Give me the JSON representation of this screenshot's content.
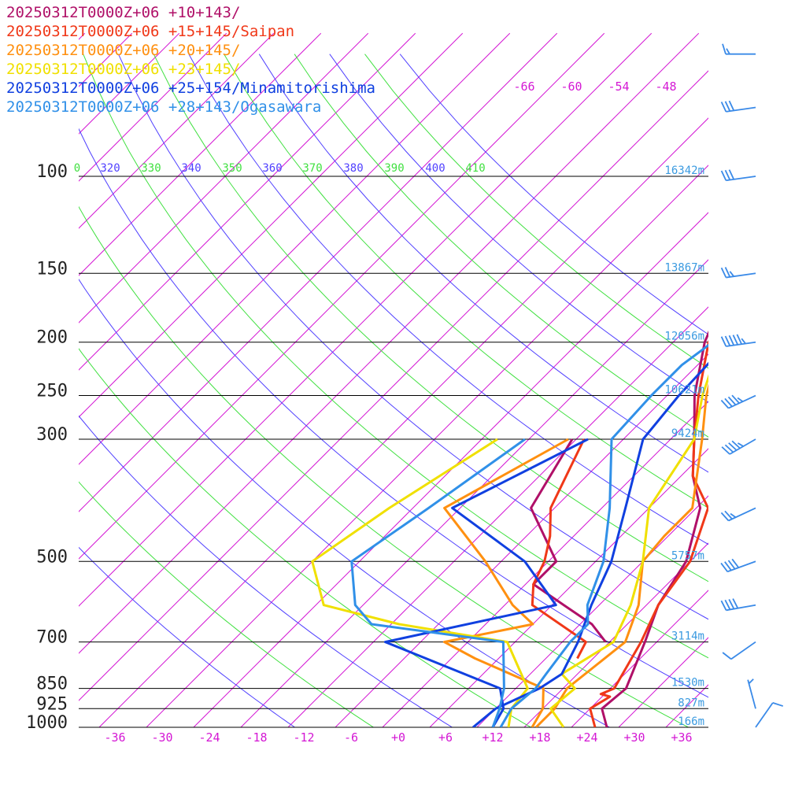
{
  "chart_data": {
    "type": "line",
    "title": "",
    "xlabel": "",
    "ylabel": "",
    "pressure_scale": "log",
    "x_range": [
      -40,
      40
    ],
    "y_range": [
      1000,
      100
    ],
    "x_ticks": [
      "-36",
      "-30",
      "-24",
      "-18",
      "-12",
      "-6",
      "+0",
      "+6",
      "+12",
      "+18",
      "+24",
      "+30",
      "+36"
    ],
    "x_tick_values": [
      -36,
      -30,
      -24,
      -18,
      -12,
      -6,
      0,
      6,
      12,
      18,
      24,
      30,
      36
    ],
    "pressure_levels": [
      {
        "p": 100,
        "label": "100",
        "height": "16342m"
      },
      {
        "p": 150,
        "label": "150",
        "height": "13867m"
      },
      {
        "p": 200,
        "label": "200",
        "height": "12056m"
      },
      {
        "p": 250,
        "label": "250",
        "height": "10621m"
      },
      {
        "p": 300,
        "label": "300",
        "height": "9424m"
      },
      {
        "p": 500,
        "label": "500",
        "height": "5757m"
      },
      {
        "p": 700,
        "label": "700",
        "height": "3114m"
      },
      {
        "p": 850,
        "label": "850",
        "height": "1530m"
      },
      {
        "p": 925,
        "label": "925",
        "height": "827m"
      },
      {
        "p": 1000,
        "label": "1000",
        "height": "166m"
      }
    ],
    "theta_labels": [
      "0",
      "320",
      "330",
      "340",
      "350",
      "360",
      "370",
      "380",
      "390",
      "400",
      "410"
    ],
    "upper_temp_labels": [
      "-66",
      "-60",
      "-54",
      "-48"
    ],
    "grid": true,
    "legend_position": "top-left",
    "colors": {
      "isotherm": "#d418d4",
      "theta_blue": "#5040ff",
      "theta_green": "#40e040",
      "pressure_line": "#000000",
      "height_label": "#3a9ae0",
      "wind_barb": "#3a8ae8"
    },
    "series": [
      {
        "name": "20250312T0000Z+06 +10+143/",
        "color": "#b01068",
        "temperature": [
          [
            1000,
            26.5
          ],
          [
            925,
            23.5
          ],
          [
            850,
            24
          ],
          [
            700,
            20.5
          ],
          [
            600,
            17.5
          ],
          [
            500,
            15.5
          ],
          [
            400,
            10.5
          ],
          [
            350,
            5.5
          ],
          [
            300,
            1
          ],
          [
            250,
            -4.5
          ],
          [
            200,
            -10
          ],
          [
            150,
            -15
          ],
          [
            130,
            -18
          ],
          [
            118,
            -20
          ],
          [
            105,
            -14
          ],
          [
            88,
            -12
          ],
          [
            80,
            -5
          ],
          [
            70,
            13
          ],
          [
            65,
            24
          ]
        ],
        "dewpoint": [
          [
            700,
            15.5
          ],
          [
            650,
            11.5
          ],
          [
            600,
            5.5
          ],
          [
            550,
            -1
          ],
          [
            500,
            -1
          ],
          [
            400,
            -11
          ],
          [
            300,
            -14.5
          ]
        ]
      },
      {
        "name": "20250312T0000Z+06 +15+145/Saipan",
        "color": "#f03818",
        "temperature": [
          [
            1000,
            25
          ],
          [
            925,
            22
          ],
          [
            880,
            23
          ],
          [
            870,
            21.5
          ],
          [
            850,
            22.5
          ],
          [
            700,
            20
          ],
          [
            600,
            17.5
          ],
          [
            500,
            16
          ],
          [
            400,
            11.5
          ],
          [
            350,
            5.5
          ],
          [
            300,
            1
          ],
          [
            250,
            -4
          ],
          [
            200,
            -9.5
          ],
          [
            150,
            -14
          ],
          [
            118,
            -20
          ],
          [
            100,
            -17
          ],
          [
            85,
            -10
          ],
          [
            75,
            0
          ],
          [
            65,
            24
          ]
        ],
        "dewpoint": [
          [
            750,
            14
          ],
          [
            700,
            13
          ],
          [
            600,
            1.5
          ],
          [
            550,
            -1
          ],
          [
            500,
            -2.5
          ],
          [
            450,
            -5
          ],
          [
            400,
            -8.5
          ],
          [
            300,
            -13
          ]
        ]
      },
      {
        "name": "20250312T0000Z+06 +20+145/",
        "color": "#ff9010",
        "temperature": [
          [
            1000,
            17.5
          ],
          [
            925,
            17.5
          ],
          [
            850,
            16.5
          ],
          [
            700,
            18
          ],
          [
            600,
            15
          ],
          [
            500,
            10
          ],
          [
            450,
            9.5
          ],
          [
            400,
            9.5
          ],
          [
            300,
            2
          ],
          [
            250,
            -3
          ],
          [
            200,
            -8
          ],
          [
            150,
            -13.5
          ],
          [
            118,
            -14.5
          ],
          [
            100,
            -11
          ],
          [
            88,
            -5
          ],
          [
            75,
            3.5
          ],
          [
            65,
            23
          ]
        ],
        "dewpoint": [
          [
            1000,
            17
          ],
          [
            925,
            16
          ],
          [
            850,
            13.5
          ],
          [
            750,
            1
          ],
          [
            700,
            -5
          ],
          [
            650,
            4
          ],
          [
            600,
            -1
          ],
          [
            500,
            -10
          ],
          [
            400,
            -22
          ],
          [
            300,
            -15
          ]
        ]
      },
      {
        "name": "20250312T0000Z+06 +23+145/",
        "color": "#f0e000",
        "temperature": [
          [
            1000,
            21
          ],
          [
            925,
            17
          ],
          [
            850,
            17.5
          ],
          [
            800,
            14
          ],
          [
            700,
            16.5
          ],
          [
            600,
            14
          ],
          [
            500,
            10
          ],
          [
            400,
            4
          ],
          [
            300,
            1
          ],
          [
            250,
            -3.5
          ],
          [
            200,
            -8
          ],
          [
            150,
            -11
          ],
          [
            130,
            -12
          ],
          [
            105,
            -8.5
          ],
          [
            90,
            -2.5
          ],
          [
            80,
            5
          ],
          [
            65,
            25.5
          ]
        ],
        "dewpoint": [
          [
            1000,
            14
          ],
          [
            925,
            12
          ],
          [
            850,
            11.5
          ],
          [
            700,
            3
          ],
          [
            650,
            -13
          ],
          [
            600,
            -25
          ],
          [
            500,
            -32
          ],
          [
            400,
            -29
          ],
          [
            300,
            -24
          ]
        ]
      },
      {
        "name": "20250312T0000Z+06 +25+154/Minamitorishima",
        "color": "#1040e0",
        "temperature": [
          [
            1000,
            9.5
          ],
          [
            925,
            10
          ],
          [
            850,
            13
          ],
          [
            800,
            14
          ],
          [
            700,
            12
          ],
          [
            600,
            9
          ],
          [
            500,
            6
          ],
          [
            400,
            1
          ],
          [
            300,
            -5.5
          ],
          [
            250,
            -6.5
          ],
          [
            200,
            -7
          ],
          [
            150,
            -8.5
          ],
          [
            140,
            -10.5
          ],
          [
            120,
            -6.5
          ],
          [
            100,
            -1.5
          ],
          [
            85,
            3.5
          ],
          [
            65,
            28
          ]
        ],
        "dewpoint": [
          [
            1000,
            12
          ],
          [
            925,
            11
          ],
          [
            850,
            8
          ],
          [
            700,
            -12.5
          ],
          [
            600,
            4.5
          ],
          [
            500,
            -5
          ],
          [
            400,
            -21
          ],
          [
            300,
            -12.5
          ]
        ]
      },
      {
        "name": "20250312T0000Z+06 +28+143/Ogasawara",
        "color": "#3090e8",
        "temperature": [
          [
            1000,
            13
          ],
          [
            925,
            12
          ],
          [
            850,
            12.5
          ],
          [
            800,
            12
          ],
          [
            700,
            11
          ],
          [
            650,
            11
          ],
          [
            600,
            8.5
          ],
          [
            500,
            5
          ],
          [
            400,
            -1
          ],
          [
            300,
            -9.5
          ],
          [
            250,
            -10
          ],
          [
            220,
            -10
          ],
          [
            200,
            -9
          ],
          [
            175,
            -7
          ],
          [
            150,
            -7.5
          ],
          [
            120,
            -6
          ],
          [
            100,
            -2
          ],
          [
            90,
            3.5
          ],
          [
            80,
            9
          ],
          [
            70,
            27
          ],
          [
            65,
            28
          ]
        ],
        "dewpoint": [
          [
            1000,
            12
          ],
          [
            925,
            10.5
          ],
          [
            850,
            8.5
          ],
          [
            700,
            2.5
          ],
          [
            650,
            -16.5
          ],
          [
            600,
            -21
          ],
          [
            500,
            -27
          ],
          [
            400,
            -24
          ],
          [
            300,
            -20.5
          ]
        ]
      }
    ],
    "wind_barbs": [
      {
        "p": 1000,
        "speed_kt": 10,
        "from_deg": 35
      },
      {
        "p": 925,
        "speed_kt": 5,
        "from_deg": 345
      },
      {
        "p": 700,
        "speed_kt": 10,
        "from_deg": 235
      },
      {
        "p": 600,
        "speed_kt": 40,
        "from_deg": 260
      },
      {
        "p": 500,
        "speed_kt": 40,
        "from_deg": 250
      },
      {
        "p": 400,
        "speed_kt": 25,
        "from_deg": 245
      },
      {
        "p": 300,
        "speed_kt": 45,
        "from_deg": 240
      },
      {
        "p": 250,
        "speed_kt": 45,
        "from_deg": 245
      },
      {
        "p": 200,
        "speed_kt": 55,
        "from_deg": 262
      },
      {
        "p": 150,
        "speed_kt": 25,
        "from_deg": 262
      },
      {
        "p": 100,
        "speed_kt": 30,
        "from_deg": 262
      },
      {
        "p": 75,
        "speed_kt": 30,
        "from_deg": 262
      },
      {
        "p": 60,
        "speed_kt": 15,
        "from_deg": 270
      }
    ]
  }
}
